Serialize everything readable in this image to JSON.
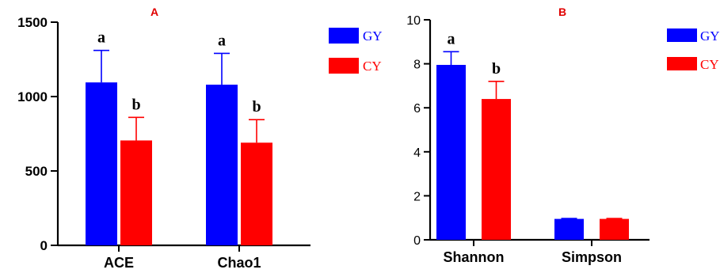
{
  "chart_data": [
    {
      "type": "bar",
      "panel_label": "A",
      "categories": [
        "ACE",
        "Chao1"
      ],
      "series": [
        {
          "name": "GY",
          "color": "#0000ff",
          "values": [
            1095,
            1080
          ],
          "errors": [
            215,
            210
          ],
          "sig": [
            "a",
            "a"
          ]
        },
        {
          "name": "CY",
          "color": "#ff0000",
          "values": [
            705,
            690
          ],
          "errors": [
            155,
            155
          ],
          "sig": [
            "b",
            "b"
          ]
        }
      ],
      "ylim": [
        0,
        1500
      ],
      "yticks": [
        0,
        500,
        1000,
        1500
      ],
      "legend_position": "right",
      "grid": false
    },
    {
      "type": "bar",
      "panel_label": "B",
      "categories": [
        "Shannon",
        "Simpson"
      ],
      "series": [
        {
          "name": "GY",
          "color": "#0000ff",
          "values": [
            7.95,
            0.95
          ],
          "errors": [
            0.6,
            0.02
          ],
          "sig": [
            "a",
            ""
          ]
        },
        {
          "name": "CY",
          "color": "#ff0000",
          "values": [
            6.4,
            0.95
          ],
          "errors": [
            0.8,
            0.02
          ],
          "sig": [
            "b",
            ""
          ]
        }
      ],
      "ylim": [
        0,
        10
      ],
      "yticks": [
        0,
        2,
        4,
        6,
        8,
        10
      ],
      "legend_position": "right",
      "grid": false
    }
  ]
}
